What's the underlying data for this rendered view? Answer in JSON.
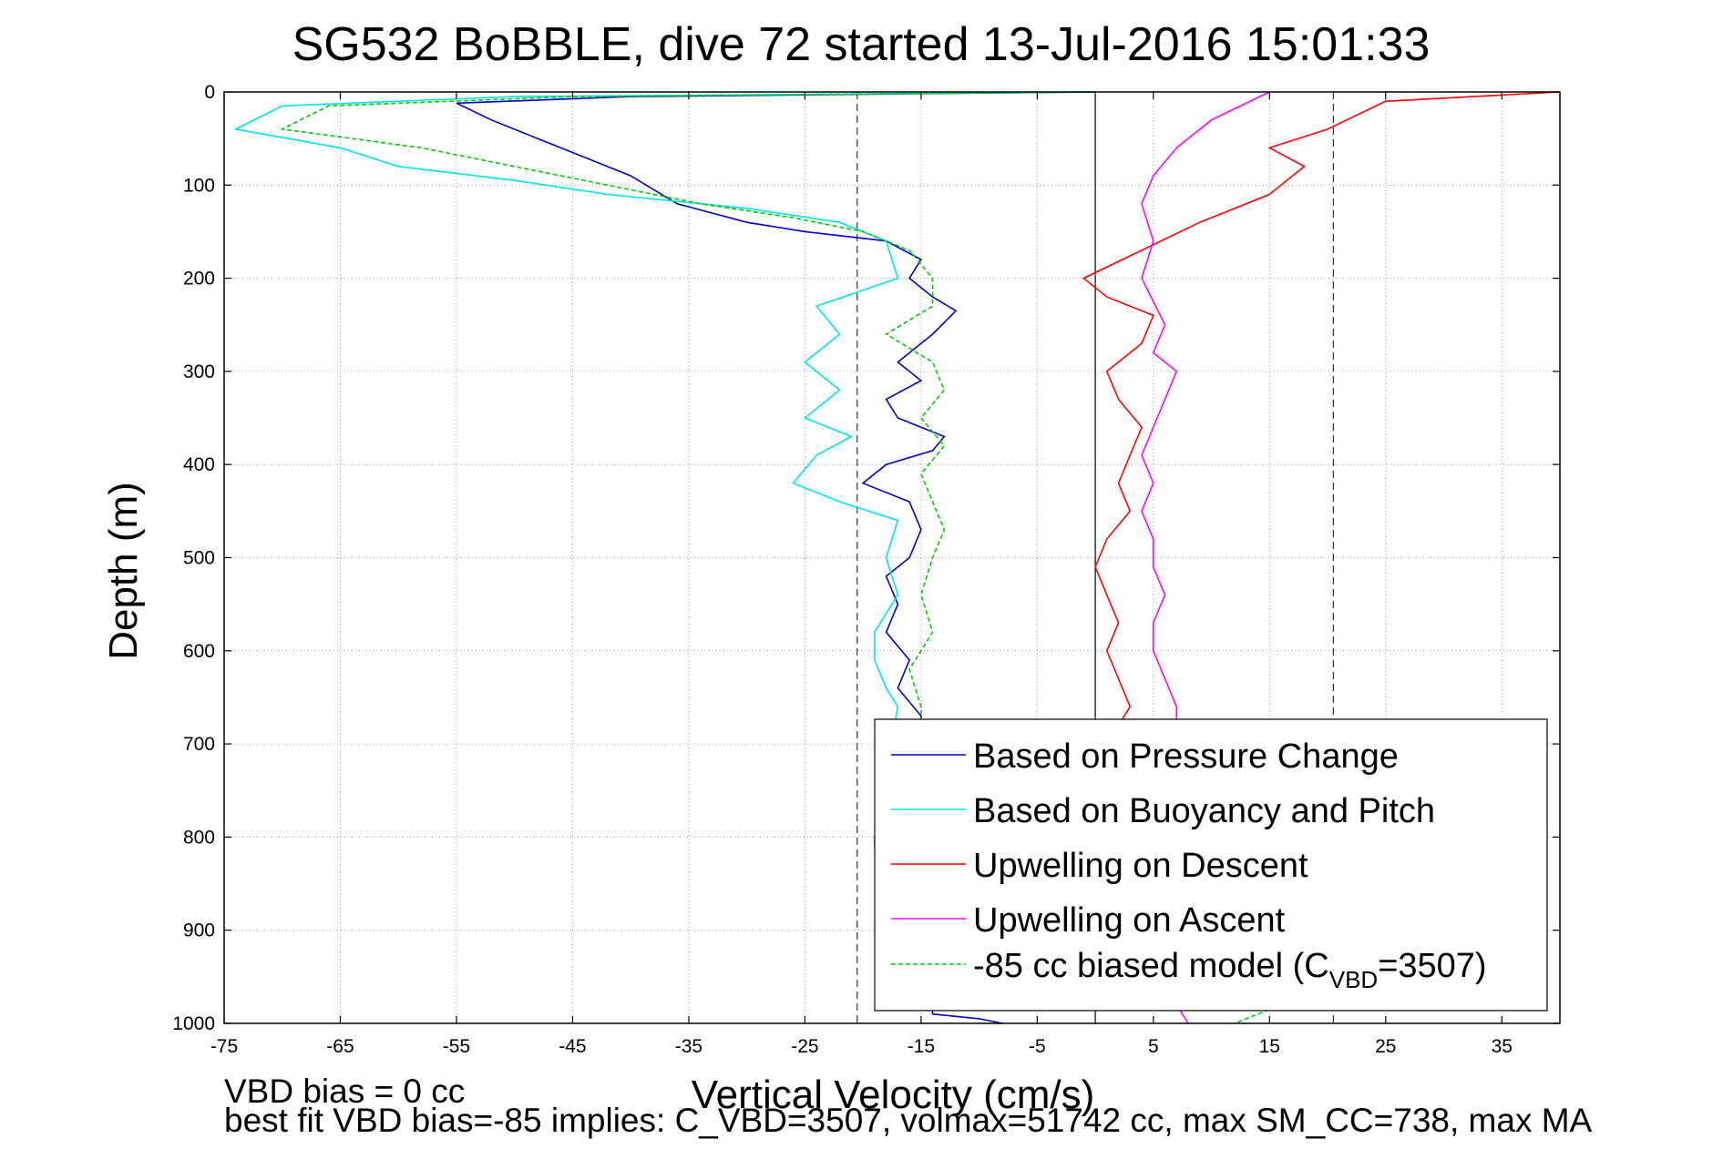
{
  "chart_data": {
    "type": "line",
    "title": "SG532 BoBBLE, dive 72 started 13-Jul-2016 15:01:33",
    "xlabel": "Vertical Velocity (cm/s)",
    "ylabel": "Depth (m)",
    "xlim": [
      -75,
      40
    ],
    "ylim": [
      0,
      1000
    ],
    "y_reversed": true,
    "grid": true,
    "x_ticks": [
      -75,
      -65,
      -55,
      -45,
      -35,
      -25,
      -15,
      -5,
      5,
      15,
      25,
      35
    ],
    "y_ticks": [
      0,
      100,
      200,
      300,
      400,
      500,
      600,
      700,
      800,
      900,
      1000
    ],
    "reference_lines": {
      "dashed_x": [
        -20.5,
        20.5
      ],
      "solid_x": [
        0
      ]
    },
    "legend_position": "lower-right",
    "series": [
      {
        "name": "Based on Pressure Change",
        "color": "#0000cc",
        "style": "solid",
        "points": [
          [
            0,
            0
          ],
          [
            -40,
            5
          ],
          [
            -55,
            12
          ],
          [
            -52,
            30
          ],
          [
            -48,
            50
          ],
          [
            -44,
            70
          ],
          [
            -40,
            90
          ],
          [
            -36,
            120
          ],
          [
            -30,
            140
          ],
          [
            -25,
            150
          ],
          [
            -18,
            160
          ],
          [
            -15,
            180
          ],
          [
            -16,
            200
          ],
          [
            -14,
            220
          ],
          [
            -12,
            235
          ],
          [
            -14,
            260
          ],
          [
            -17,
            290
          ],
          [
            -15,
            310
          ],
          [
            -18,
            330
          ],
          [
            -17,
            350
          ],
          [
            -13,
            370
          ],
          [
            -14,
            385
          ],
          [
            -18,
            400
          ],
          [
            -20,
            420
          ],
          [
            -16,
            440
          ],
          [
            -15,
            470
          ],
          [
            -16,
            500
          ],
          [
            -18,
            520
          ],
          [
            -17,
            550
          ],
          [
            -18,
            580
          ],
          [
            -16,
            610
          ],
          [
            -17,
            640
          ],
          [
            -15,
            670
          ],
          [
            -15,
            690
          ],
          [
            -14,
            990
          ],
          [
            -10,
            995
          ],
          [
            -8,
            1000
          ]
        ]
      },
      {
        "name": "Based on Buoyancy and Pitch",
        "color": "#00e5e5",
        "style": "solid",
        "points": [
          [
            0,
            0
          ],
          [
            -50,
            5
          ],
          [
            -70,
            15
          ],
          [
            -74,
            40
          ],
          [
            -65,
            60
          ],
          [
            -60,
            80
          ],
          [
            -50,
            95
          ],
          [
            -42,
            110
          ],
          [
            -30,
            125
          ],
          [
            -22,
            140
          ],
          [
            -18,
            160
          ],
          [
            -17,
            200
          ],
          [
            -24,
            230
          ],
          [
            -22,
            260
          ],
          [
            -25,
            290
          ],
          [
            -22,
            320
          ],
          [
            -25,
            350
          ],
          [
            -21,
            370
          ],
          [
            -24,
            390
          ],
          [
            -26,
            420
          ],
          [
            -22,
            440
          ],
          [
            -17,
            460
          ],
          [
            -18,
            500
          ],
          [
            -17,
            540
          ],
          [
            -19,
            580
          ],
          [
            -19,
            610
          ],
          [
            -18,
            640
          ],
          [
            -17,
            660
          ],
          [
            -19,
            800
          ],
          [
            -19,
            810
          ],
          [
            -14,
            985
          ]
        ]
      },
      {
        "name": "Upwelling on Descent",
        "color": "#ff0000",
        "style": "solid",
        "points": [
          [
            40,
            0
          ],
          [
            25,
            10
          ],
          [
            20,
            40
          ],
          [
            15,
            60
          ],
          [
            18,
            80
          ],
          [
            15,
            110
          ],
          [
            9,
            140
          ],
          [
            4,
            170
          ],
          [
            -1,
            200
          ],
          [
            1,
            220
          ],
          [
            5,
            240
          ],
          [
            4,
            270
          ],
          [
            1,
            300
          ],
          [
            2,
            330
          ],
          [
            4,
            360
          ],
          [
            3,
            390
          ],
          [
            2,
            420
          ],
          [
            3,
            450
          ],
          [
            1,
            480
          ],
          [
            0,
            510
          ],
          [
            1,
            540
          ],
          [
            2,
            570
          ],
          [
            1,
            600
          ],
          [
            2,
            630
          ],
          [
            3,
            660
          ],
          [
            2,
            680
          ]
        ]
      },
      {
        "name": "Upwelling on Ascent",
        "color": "#ff00ff",
        "style": "solid",
        "points": [
          [
            15,
            0
          ],
          [
            10,
            30
          ],
          [
            7,
            60
          ],
          [
            5,
            90
          ],
          [
            4,
            120
          ],
          [
            5,
            160
          ],
          [
            4,
            200
          ],
          [
            6,
            250
          ],
          [
            5,
            280
          ],
          [
            7,
            300
          ],
          [
            6,
            330
          ],
          [
            5,
            360
          ],
          [
            4,
            390
          ],
          [
            5,
            420
          ],
          [
            4,
            450
          ],
          [
            5,
            480
          ],
          [
            5,
            510
          ],
          [
            6,
            540
          ],
          [
            5,
            570
          ],
          [
            5,
            600
          ],
          [
            6,
            630
          ],
          [
            7,
            660
          ],
          [
            7,
            980
          ],
          [
            8,
            1000
          ]
        ]
      },
      {
        "name": "-85 cc biased model (C",
        "name_sub": "VBD",
        "name_suffix": "=3507)",
        "color": "#00cc00",
        "style": "dashed",
        "points": [
          [
            0,
            0
          ],
          [
            -45,
            5
          ],
          [
            -66,
            15
          ],
          [
            -70,
            40
          ],
          [
            -58,
            60
          ],
          [
            -50,
            80
          ],
          [
            -42,
            100
          ],
          [
            -34,
            120
          ],
          [
            -26,
            135
          ],
          [
            -20,
            150
          ],
          [
            -16,
            170
          ],
          [
            -14,
            200
          ],
          [
            -14,
            230
          ],
          [
            -18,
            260
          ],
          [
            -14,
            290
          ],
          [
            -13,
            320
          ],
          [
            -15,
            350
          ],
          [
            -13,
            380
          ],
          [
            -15,
            410
          ],
          [
            -14,
            440
          ],
          [
            -13,
            470
          ],
          [
            -14,
            500
          ],
          [
            -15,
            540
          ],
          [
            -14,
            580
          ],
          [
            -16,
            620
          ],
          [
            -15,
            660
          ],
          [
            -15,
            680
          ],
          [
            20,
            960
          ],
          [
            12,
            1000
          ]
        ]
      }
    ]
  },
  "footnotes": {
    "line1": "VBD bias = 0 cc",
    "line2": "best fit VBD bias=-85 implies: C_VBD=3507, volmax=51742 cc, max SM_CC=738, max MA"
  }
}
